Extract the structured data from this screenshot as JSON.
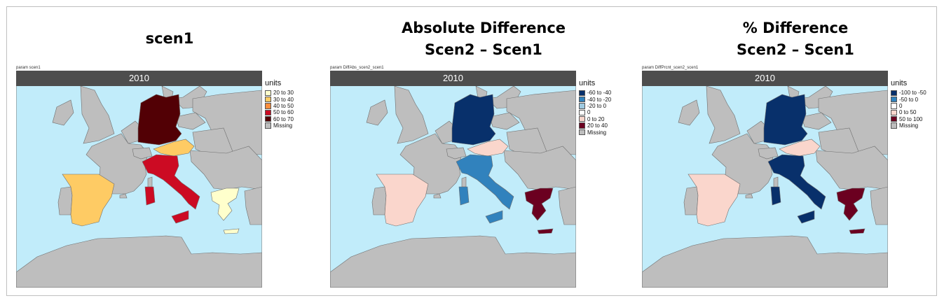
{
  "panels": [
    {
      "title_line1": "scen1",
      "title_line2": "",
      "param_label": "param scen1",
      "facet_label": "2010",
      "legend_title": "units",
      "legend": [
        {
          "label": "20 to 30",
          "color": "#ffffcc"
        },
        {
          "label": "30 to 40",
          "color": "#fecb64"
        },
        {
          "label": "40 to 50",
          "color": "#fd8d3c"
        },
        {
          "label": "50 to 60",
          "color": "#cc0b23"
        },
        {
          "label": "60 to 70",
          "color": "#520005"
        },
        {
          "label": "Missing",
          "color": "#bebebe"
        }
      ],
      "countries": {
        "germany": "#520005",
        "austria": "#fecb64",
        "italy": "#cc0b23",
        "spain": "#fecb64",
        "greece": "#ffffcc"
      }
    },
    {
      "title_line1": "Absolute Difference",
      "title_line2": "Scen2 – Scen1",
      "param_label": "param DiffAbs_scen2_scen1",
      "facet_label": "2010",
      "legend_title": "units",
      "legend": [
        {
          "label": "-60 to -40",
          "color": "#08306b"
        },
        {
          "label": "-40 to -20",
          "color": "#3182bd"
        },
        {
          "label": "-20 to 0",
          "color": "#9ecae1"
        },
        {
          "label": "0",
          "color": "#ffffff"
        },
        {
          "label": "0 to 20",
          "color": "#fad6cc"
        },
        {
          "label": "20 to 40",
          "color": "#6b0020"
        },
        {
          "label": "Missing",
          "color": "#bebebe"
        }
      ],
      "countries": {
        "germany": "#08306b",
        "austria": "#fad6cc",
        "italy": "#3182bd",
        "spain": "#fad6cc",
        "greece": "#6b0020"
      }
    },
    {
      "title_line1": "% Difference",
      "title_line2": "Scen2 – Scen1",
      "param_label": "param DiffPrcnt_scen2_scen1",
      "facet_label": "2010",
      "legend_title": "units",
      "legend": [
        {
          "label": "-100 to -50",
          "color": "#08306b"
        },
        {
          "label": "-50 to 0",
          "color": "#3182bd"
        },
        {
          "label": "0",
          "color": "#ffffff"
        },
        {
          "label": "0 to 50",
          "color": "#fad6cc"
        },
        {
          "label": "50 to 100",
          "color": "#6b0020"
        },
        {
          "label": "Missing",
          "color": "#bebebe"
        }
      ],
      "countries": {
        "germany": "#08306b",
        "austria": "#fad6cc",
        "italy": "#08306b",
        "spain": "#fad6cc",
        "greece": "#6b0020"
      }
    }
  ],
  "colors": {
    "sea": "#c1ecfa",
    "land_missing": "#bebebe",
    "border": "#6f6f6f"
  }
}
